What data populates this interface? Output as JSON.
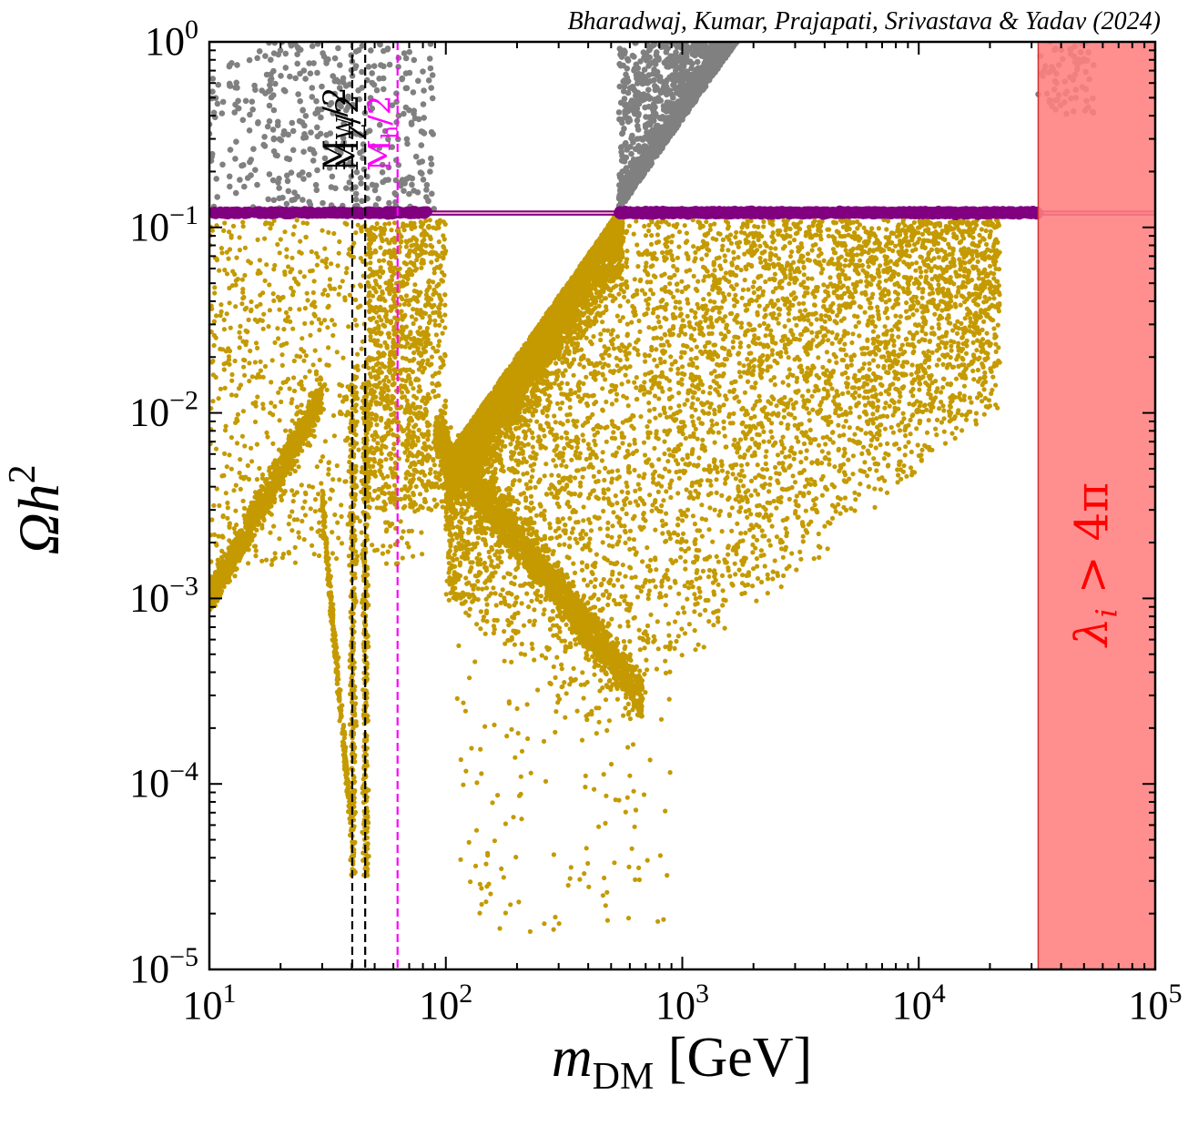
{
  "chart_data": {
    "type": "scatter",
    "credit": "Bharadwaj, Kumar, Prajapati, Srivastava & Yadav (2024)",
    "xlabel": {
      "var": "m",
      "sub": "DM",
      "unit": " [GeV]"
    },
    "ylabel": {
      "base": "Ωh",
      "sup": "2"
    },
    "xscale": "log",
    "yscale": "log",
    "xlim": [
      10,
      100000
    ],
    "ylim": [
      1e-05,
      1
    ],
    "x_ticks": [
      {
        "value": 10,
        "base": "10",
        "exp": "1"
      },
      {
        "value": 100,
        "base": "10",
        "exp": "2"
      },
      {
        "value": 1000,
        "base": "10",
        "exp": "3"
      },
      {
        "value": 10000,
        "base": "10",
        "exp": "4"
      },
      {
        "value": 100000,
        "base": "10",
        "exp": "5"
      }
    ],
    "y_ticks": [
      {
        "value": 1,
        "base": "10",
        "exp": "0"
      },
      {
        "value": 0.1,
        "base": "10",
        "exp": "−1"
      },
      {
        "value": 0.01,
        "base": "10",
        "exp": "−2"
      },
      {
        "value": 0.001,
        "base": "10",
        "exp": "−3"
      },
      {
        "value": 0.0001,
        "base": "10",
        "exp": "−4"
      },
      {
        "value": 1e-05,
        "base": "10",
        "exp": "−5"
      }
    ],
    "grid": false,
    "vertical_lines": [
      {
        "x": 40.2,
        "label_base": "M",
        "label_sub": "W",
        "label_tail": "/2",
        "color": "#000000",
        "style": "dashed"
      },
      {
        "x": 45.6,
        "label_base": "M",
        "label_sub": "Z",
        "label_tail": "/2",
        "color": "#000000",
        "style": "dashed"
      },
      {
        "x": 62.5,
        "label_base": "M",
        "label_sub": "h",
        "label_tail": "/2",
        "color": "#ff00ff",
        "style": "dashed"
      }
    ],
    "relic_band": {
      "y_min": 0.117,
      "y_max": 0.122,
      "color": "#ffc0d8",
      "edge_color": "#800080"
    },
    "excluded_region": {
      "x_min": 32000,
      "x_max": 100000,
      "color": "#ff8080",
      "label": "λi > 4π",
      "label_parts": {
        "lambda": "λ",
        "sub": "i",
        "rest": " > 4π"
      },
      "label_color": "#ff0000"
    },
    "series": [
      {
        "role": "overabundant",
        "color": "#808080",
        "y_range": [
          0.122,
          1
        ],
        "description_points": "random scan points above relic band"
      },
      {
        "role": "underabundant",
        "color": "#c49a00",
        "y_range": [
          1e-05,
          0.117
        ]
      },
      {
        "role": "relic-satisfied",
        "color": "#800080",
        "x_segments": [
          [
            10,
            85
          ],
          [
            540,
            32000
          ]
        ],
        "y": 0.12
      }
    ],
    "features": {
      "resonance_dip_x": 40.5,
      "resonance_dip_min_y": 3e-05,
      "second_dip_x": 45.6,
      "boundary_line_points": [
        [
          100,
          0.006
        ],
        [
          530,
          0.12
        ],
        [
          1700,
          1
        ]
      ]
    }
  }
}
